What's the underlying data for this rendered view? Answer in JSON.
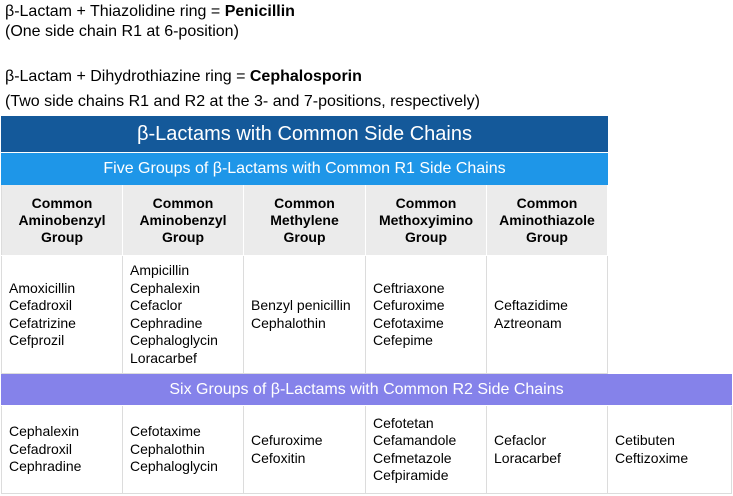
{
  "intro": {
    "line1_prefix": "β-Lactam + Thiazolidine ring = ",
    "line1_bold": "Penicillin",
    "line2": "(One side chain R1 at 6-position)",
    "line3_prefix": "β-Lactam + Dihydrothiazine ring = ",
    "line3_bold": "Cephalosporin",
    "line4": "(Two side chains R1 and R2 at the 3- and 7-positions, respectively)"
  },
  "table": {
    "title": "β-Lactams with Common Side Chains",
    "r1_title": "Five Groups of β-Lactams with Common R1 Side Chains",
    "headers": [
      [
        "Common",
        "Aminobenzyl",
        "Group"
      ],
      [
        "Common",
        "Aminobenzyl",
        "Group"
      ],
      [
        "Common",
        "Methylene",
        "Group"
      ],
      [
        "Common",
        "Methoxyimino",
        "Group"
      ],
      [
        "Common",
        "Aminothiazole",
        "Group"
      ]
    ],
    "r1_cells": [
      [
        "Amoxicillin",
        "Cefadroxil",
        "Cefatrizine",
        "Cefprozil"
      ],
      [
        "Ampicillin",
        "Cephalexin",
        "Cefaclor",
        "Cephradine",
        "Cephaloglycin",
        "Loracarbef"
      ],
      [
        "Benzyl penicillin",
        "Cephalothin"
      ],
      [
        "Ceftriaxone",
        "Cefuroxime",
        "Cefotaxime",
        "Cefepime"
      ],
      [
        "Ceftazidime",
        "Aztreonam"
      ]
    ],
    "r2_title": "Six Groups of β-Lactams with Common R2 Side Chains",
    "r2_cells": [
      [
        "Cephalexin",
        "Cefadroxil",
        "Cephradine"
      ],
      [
        "Cefotaxime",
        "Cephalothin",
        "Cephaloglycin"
      ],
      [
        "Cefuroxime",
        "Cefoxitin"
      ],
      [
        "Cefotetan",
        "Cefamandole",
        "Cefmetazole",
        "Cefpiramide"
      ],
      [
        "Cefaclor",
        "Loracarbef"
      ],
      [
        "Cetibuten",
        "Ceftizoxime"
      ]
    ]
  }
}
